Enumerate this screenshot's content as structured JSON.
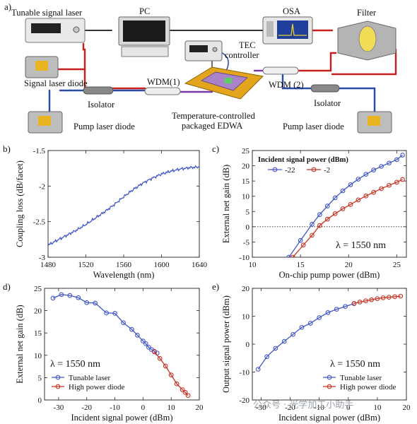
{
  "setup": {
    "panel": "a)",
    "labels": {
      "tunable_laser": "Tunable signal laser",
      "pc": "PC",
      "osa": "OSA",
      "filter": "Filter",
      "tec": "TEC",
      "tec2": "controller",
      "signal_diode": "Signal laser diode",
      "wdm1": "WDM(1)",
      "wdm2": "WDM (2)",
      "isolator1": "Isolator",
      "isolator2": "Isolator",
      "edwa1": "Temperature-controlled",
      "edwa2": "packaged EDWA",
      "pump1": "Pump laser diode",
      "pump2": "Pump laser diode"
    }
  },
  "watermark": "公众号 · 光学加工小助手",
  "colors": {
    "blue": "#4156c8",
    "red": "#c83223",
    "fiber_red": "#c81e1e",
    "fiber_blue": "#2a4aa8",
    "fiber_purple": "#7a3aa8",
    "fiber_dark": "#333333"
  },
  "chart_data": [
    {
      "panel": "b)",
      "type": "line",
      "xlabel": "Wavelength (nm)",
      "ylabel": "Coupling loss (dB/facet)",
      "xlim": [
        1480,
        1640
      ],
      "ylim": [
        -3,
        -1.5
      ],
      "xticks": [
        1480,
        1520,
        1560,
        1600,
        1640
      ],
      "yticks": [
        -3,
        -2.5,
        -2,
        -1.5
      ],
      "xtick_labels": [
        "1480",
        "1520",
        "1560",
        "1600",
        "1640"
      ],
      "ytick_labels": [
        "-3",
        "-2.5",
        "-2",
        "-1.5"
      ],
      "series": [
        {
          "x": [
            1480,
            1490,
            1500,
            1510,
            1520,
            1530,
            1540,
            1550,
            1560,
            1570,
            1580,
            1590,
            1600,
            1610,
            1620,
            1630,
            1640
          ],
          "y": [
            -2.83,
            -2.76,
            -2.69,
            -2.62,
            -2.54,
            -2.45,
            -2.36,
            -2.26,
            -2.15,
            -2.05,
            -1.96,
            -1.89,
            -1.83,
            -1.79,
            -1.76,
            -1.74,
            -1.73
          ]
        }
      ]
    },
    {
      "panel": "c)",
      "type": "line",
      "xlabel": "On-chip pump power (dBm)",
      "ylabel": "External net gain (dB)",
      "xlim": [
        10,
        26
      ],
      "ylim": [
        -10,
        25
      ],
      "xticks": [
        10,
        15,
        20,
        25
      ],
      "yticks": [
        -10,
        -5,
        0,
        5,
        10,
        15,
        20,
        25
      ],
      "xtick_labels": [
        "10",
        "15",
        "20",
        "25"
      ],
      "ytick_labels": [
        "-10",
        "-5",
        "0",
        "5",
        "10",
        "15",
        "20",
        "25"
      ],
      "legend_title": "Incident signal power (dBm)",
      "annotation": "λ = 1550 nm",
      "zero_line": true,
      "series": [
        {
          "name": "-22",
          "x": [
            13.8,
            15,
            16.2,
            17,
            17.8,
            18.6,
            19.4,
            20.2,
            21,
            21.8,
            22.6,
            23.4,
            24.2,
            25,
            25.6
          ],
          "y": [
            -10,
            -4.5,
            0.8,
            4,
            6.8,
            9.5,
            11.8,
            13.8,
            15.6,
            17.2,
            18.6,
            19.8,
            20.9,
            22,
            23.5
          ]
        },
        {
          "name": "-2",
          "x": [
            14.2,
            15.3,
            16.2,
            17,
            17.8,
            18.6,
            19.4,
            20.2,
            21,
            21.8,
            22.6,
            23.4,
            24.2,
            25,
            25.6
          ],
          "y": [
            -10,
            -6,
            -2.8,
            0.4,
            2.5,
            4.3,
            5.9,
            7.3,
            8.8,
            10.1,
            11.3,
            12.5,
            13.6,
            14.6,
            15.5
          ]
        }
      ]
    },
    {
      "panel": "d)",
      "type": "line",
      "xlabel": "Incident signal power (dBm)",
      "ylabel": "External net gain (dB)",
      "xlim": [
        -35,
        20
      ],
      "ylim": [
        0,
        25
      ],
      "xticks": [
        -30,
        -20,
        -10,
        0,
        10,
        20
      ],
      "yticks": [
        0,
        5,
        10,
        15,
        20,
        25
      ],
      "xtick_labels": [
        "-30",
        "-20",
        "-10",
        "0",
        "10",
        "20"
      ],
      "ytick_labels": [
        "0",
        "5",
        "10",
        "15",
        "20",
        "25"
      ],
      "annotation": "λ = 1550 nm",
      "series": [
        {
          "name": "Tunable laser",
          "x": [
            -32,
            -29,
            -26,
            -23,
            -20,
            -17,
            -13,
            -10,
            -7,
            -4,
            -2,
            0,
            1,
            2,
            3,
            4,
            5
          ],
          "y": [
            22.8,
            23.6,
            23.4,
            22.9,
            21.8,
            21.7,
            19.5,
            19.4,
            17.3,
            15.8,
            14.5,
            13.2,
            12.6,
            11.8,
            11.3,
            10.9,
            10.5
          ]
        },
        {
          "name": "High power diode",
          "x": [
            4,
            6,
            8,
            10,
            12,
            14,
            15,
            16
          ],
          "y": [
            10.8,
            9.3,
            7.6,
            5.6,
            3.6,
            2.3,
            1.7,
            1.0
          ]
        }
      ]
    },
    {
      "panel": "e)",
      "type": "line",
      "xlabel": "Incident signal power (dBm)",
      "ylabel": "Output signal power (dBm)",
      "xlim": [
        -33,
        20
      ],
      "ylim": [
        -20,
        20
      ],
      "xticks": [
        -30,
        -20,
        -10,
        0,
        10,
        20
      ],
      "yticks": [
        -20,
        -10,
        0,
        10,
        20
      ],
      "xtick_labels": [
        "-30",
        "-20",
        "-10",
        "0",
        "10",
        "20"
      ],
      "ytick_labels": [
        "-20",
        "-10",
        "0",
        "10",
        "20"
      ],
      "annotation": "λ = 1550 nm",
      "series": [
        {
          "name": "Tunable laser",
          "x": [
            -31,
            -28,
            -25,
            -22,
            -19,
            -16,
            -13,
            -10,
            -7,
            -4,
            -1,
            2
          ],
          "y": [
            -9,
            -4.5,
            -1.5,
            1,
            3.5,
            6,
            7.5,
            9.5,
            11.3,
            12.5,
            13.5,
            14.5
          ]
        },
        {
          "name": "High power diode",
          "x": [
            2,
            4,
            6,
            8,
            10,
            12,
            14,
            16,
            18
          ],
          "y": [
            14.6,
            15.1,
            15.5,
            15.9,
            16.3,
            16.6,
            16.8,
            17,
            17.2
          ]
        }
      ]
    }
  ]
}
